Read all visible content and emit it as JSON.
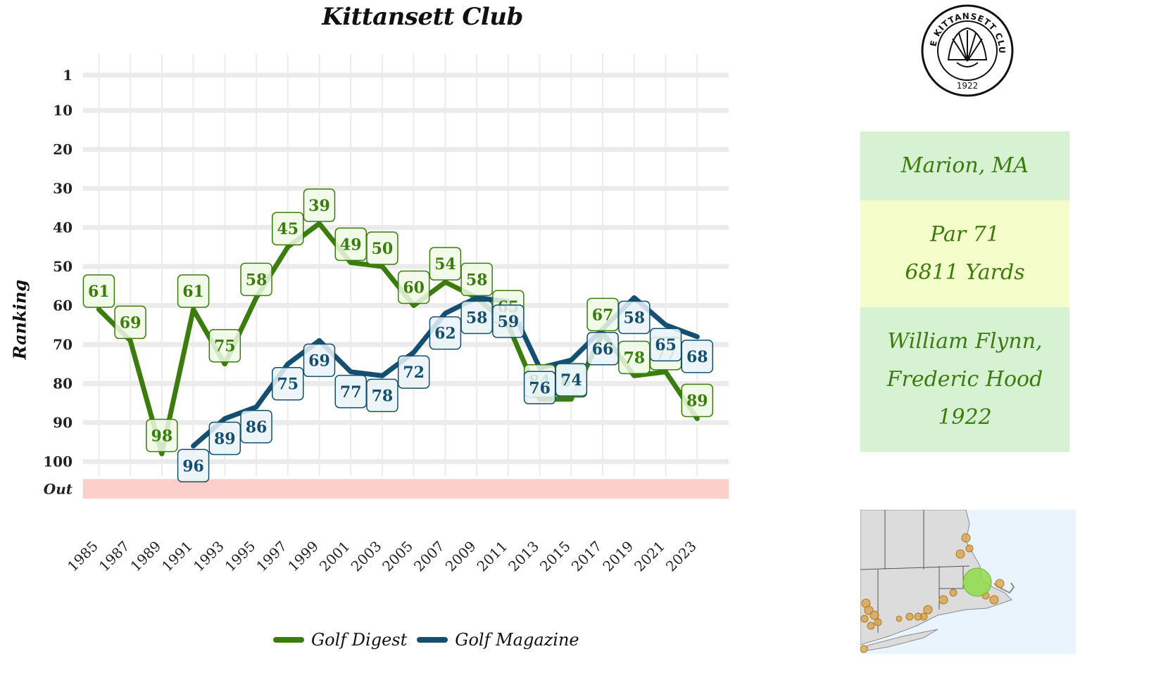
{
  "chart_data": {
    "type": "line",
    "title": "Kittansett Club",
    "xlabel": "",
    "ylabel": "Ranking",
    "y_axis": {
      "reversed": true,
      "ticks": [
        1,
        10,
        20,
        30,
        40,
        50,
        60,
        70,
        80,
        90,
        100
      ],
      "out_band_label": "Out",
      "ylim": [
        1,
        110
      ]
    },
    "x_ticks": [
      1985,
      1987,
      1989,
      1991,
      1993,
      1995,
      1997,
      1999,
      2001,
      2003,
      2005,
      2007,
      2009,
      2011,
      2013,
      2015,
      2017,
      2019,
      2021,
      2023
    ],
    "xlim": [
      1984,
      2025
    ],
    "grid": true,
    "legend_position": "bottom",
    "series": [
      {
        "name": "Golf Digest",
        "color": "#3a7d0a",
        "label_bg": "#f0fae6",
        "points": [
          {
            "x": 1985,
            "y": 61
          },
          {
            "x": 1987,
            "y": 69
          },
          {
            "x": 1989,
            "y": 98
          },
          {
            "x": 1991,
            "y": 61
          },
          {
            "x": 1993,
            "y": 75
          },
          {
            "x": 1995,
            "y": 58
          },
          {
            "x": 1997,
            "y": 45
          },
          {
            "x": 1999,
            "y": 39
          },
          {
            "x": 2001,
            "y": 49
          },
          {
            "x": 2003,
            "y": 50
          },
          {
            "x": 2005,
            "y": 60
          },
          {
            "x": 2007,
            "y": 54
          },
          {
            "x": 2009,
            "y": 58
          },
          {
            "x": 2011,
            "y": 65
          },
          {
            "x": 2013,
            "y": 84
          },
          {
            "x": 2015,
            "y": 84
          },
          {
            "x": 2017,
            "y": 67
          },
          {
            "x": 2019,
            "y": 78
          },
          {
            "x": 2021,
            "y": 77
          },
          {
            "x": 2023,
            "y": 89
          }
        ]
      },
      {
        "name": "Golf Magazine",
        "color": "#134f70",
        "label_bg": "#eaf3f8",
        "points": [
          {
            "x": 1991,
            "y": 96
          },
          {
            "x": 1993,
            "y": 89
          },
          {
            "x": 1995,
            "y": 86
          },
          {
            "x": 1997,
            "y": 75
          },
          {
            "x": 1999,
            "y": 69
          },
          {
            "x": 2001,
            "y": 77
          },
          {
            "x": 2003,
            "y": 78
          },
          {
            "x": 2005,
            "y": 72
          },
          {
            "x": 2007,
            "y": 62
          },
          {
            "x": 2009,
            "y": 58
          },
          {
            "x": 2011,
            "y": 59
          },
          {
            "x": 2013,
            "y": 76
          },
          {
            "x": 2015,
            "y": 74
          },
          {
            "x": 2017,
            "y": 66
          },
          {
            "x": 2019,
            "y": 58
          },
          {
            "x": 2021,
            "y": 65
          },
          {
            "x": 2023,
            "y": 68
          }
        ]
      }
    ]
  },
  "logo": {
    "ring_text": "THE KITTANSETT CLUB",
    "year": "1922"
  },
  "info": {
    "location": "Marion, MA",
    "par": "Par 71",
    "yards": "6811 Yards",
    "architect_line1": "William Flynn,",
    "architect_line2": "Frederic Hood",
    "year_built": "1922"
  },
  "colors": {
    "out_band": "#fccfcb",
    "grid": "#ebebeb",
    "panel_green": "#d7f2d3",
    "panel_yellow": "#f5fdcb",
    "panel_text": "#3a7d0a",
    "map_water": "#eaf4fc",
    "map_land": "#dcdcdc",
    "map_other_courses": "#d8a040",
    "map_this_course": "#8fdc4a"
  }
}
